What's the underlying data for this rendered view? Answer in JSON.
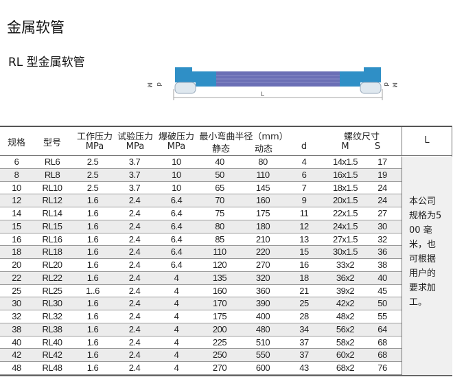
{
  "title": "金属软管",
  "subtitle": "RL 型金属软管",
  "diagram": {
    "labels": {
      "M": "M",
      "d": "d",
      "L": "L"
    },
    "colors": {
      "hose": "#6b6fb5",
      "fitting": "#2f8fc6"
    }
  },
  "table": {
    "headers": {
      "spec": "规格",
      "model": "型号",
      "work_pressure": "工作压力",
      "test_pressure": "试验压力",
      "burst_pressure": "爆破压力",
      "unit_mpa": "MPa",
      "bend_radius": "最小弯曲半径（mm）",
      "static": "静态",
      "dynamic": "动态",
      "d": "d",
      "thread": "螺纹尺寸",
      "M": "M",
      "S": "S",
      "L": "L"
    },
    "rows": [
      [
        "6",
        "RL6",
        "2.5",
        "3.7",
        "10",
        "40",
        "80",
        "4",
        "14x1.5",
        "17"
      ],
      [
        "8",
        "RL8",
        "2.5",
        "3.7",
        "10",
        "50",
        "110",
        "6",
        "16x1.5",
        "19"
      ],
      [
        "10",
        "RL10",
        "2.5",
        "3.7",
        "10",
        "65",
        "145",
        "7",
        "18x1.5",
        "24"
      ],
      [
        "12",
        "RL12",
        "1.6",
        "2.4",
        "6.4",
        "70",
        "160",
        "9",
        "20x1.5",
        "24"
      ],
      [
        "14",
        "RL14",
        "1.6",
        "2.4",
        "6.4",
        "75",
        "175",
        "11",
        "22x1.5",
        "27"
      ],
      [
        "15",
        "RL15",
        "1.6",
        "2.4",
        "6.4",
        "80",
        "180",
        "12",
        "24x1.5",
        "30"
      ],
      [
        "16",
        "RL16",
        "1.6",
        "2.4",
        "6.4",
        "85",
        "210",
        "13",
        "27x1.5",
        "32"
      ],
      [
        "18",
        "RL18",
        "1.6",
        "2.4",
        "6.4",
        "110",
        "220",
        "15",
        "30x1.5",
        "36"
      ],
      [
        "20",
        "RL20",
        "1.6",
        "2.4",
        "6.4",
        "120",
        "270",
        "16",
        "33x2",
        "38"
      ],
      [
        "22",
        "RL22",
        "1.6",
        "2.4",
        "4",
        "135",
        "320",
        "18",
        "36x2",
        "40"
      ],
      [
        "25",
        "RL25",
        "1..6",
        "2.4",
        "4",
        "160",
        "360",
        "21",
        "39x2",
        "45"
      ],
      [
        "30",
        "RL30",
        "1.6",
        "2.4",
        "4",
        "170",
        "390",
        "25",
        "42x2",
        "50"
      ],
      [
        "32",
        "RL32",
        "1.6",
        "2.4",
        "4",
        "175",
        "400",
        "28",
        "48x2",
        "55"
      ],
      [
        "38",
        "RL38",
        "1.6",
        "2.4",
        "4",
        "200",
        "480",
        "34",
        "56x2",
        "64"
      ],
      [
        "40",
        "RL40",
        "1.6",
        "2.4",
        "4",
        "225",
        "510",
        "37",
        "58x2",
        "68"
      ],
      [
        "42",
        "RL42",
        "1.6",
        "2.4",
        "4",
        "250",
        "550",
        "37",
        "60x2",
        "68"
      ],
      [
        "48",
        "RL48",
        "1.6",
        "2.4",
        "4",
        "270",
        "600",
        "43",
        "68x2",
        "76"
      ]
    ],
    "l_note": "本公司规格为500 毫米，也可根据用户的要求加工。"
  }
}
